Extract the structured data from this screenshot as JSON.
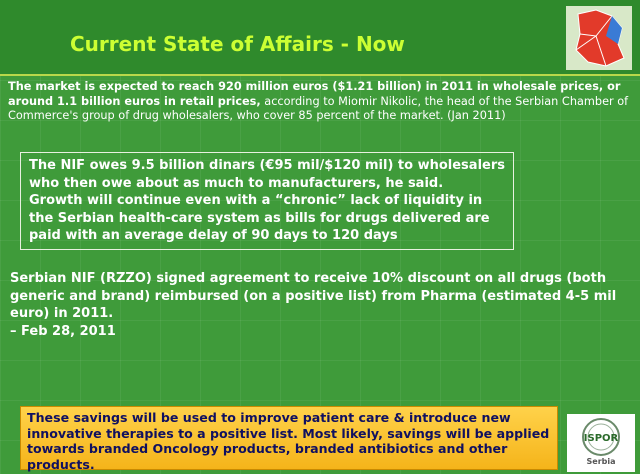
{
  "title": "Current State of Affairs - Now",
  "intro": {
    "bold": "The market is expected to reach 920 million euros ($1.21 billion) in 2011 in wholesale prices, or around 1.1 billion euros in retail prices,",
    "normal": "according to Miomir Nikolic, the head of the Serbian Chamber of Commerce's group of drug wholesalers, who cover 85 percent of the market. (Jan 2011)"
  },
  "quote": [
    "The NIF owes 9.5 billion dinars (€95 mil/$120 mil) to wholesalers who then owe about as much to manufacturers, he said.",
    "Growth will continue even with a “chronic” lack of liquidity in the Serbian health-care system as bills for drugs delivered are paid with an average delay of 90 days to 120 days"
  ],
  "agreement": "Serbian NIF (RZZO) signed agreement to receive 10% discount on all drugs (both generic and brand) reimbursed (on a positive list) from Pharma (estimated 4-5 mil euro) in 2011.",
  "agreement_date": "– Feb 28, 2011",
  "savings": "These savings will be used to improve patient care & introduce new innovative therapies to a positive list. Most likely, savings will be applied towards branded Oncology products, branded antibiotics and other products.",
  "logo": {
    "name": "ISPOR",
    "region": "Serbia"
  }
}
